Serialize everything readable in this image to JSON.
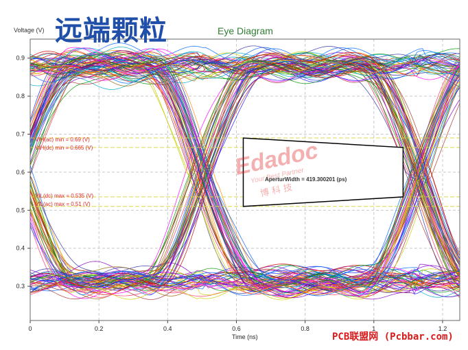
{
  "header": {
    "big_title": "远端颗粒",
    "chart_title": "Eye Diagram"
  },
  "footer": {
    "watermark": "PCB联盟网 (Pcbbar.com)"
  },
  "chart_data": {
    "type": "line",
    "title": "Eye Diagram",
    "ylabel": "Voltage (V)",
    "xlabel": "Time (ns)",
    "xlim": [
      0,
      1.25
    ],
    "ylim": [
      0.21,
      0.95
    ],
    "x_ticks": [
      "0",
      "0.2",
      "0.4",
      "0.6",
      "0.8",
      "1",
      "1.2"
    ],
    "x_tick_values": [
      0,
      0.2,
      0.4,
      0.6,
      0.8,
      1.0,
      1.2
    ],
    "y_ticks": [
      "0.3",
      "0.4",
      "0.5",
      "0.6",
      "0.7",
      "0.8",
      "0.9"
    ],
    "y_tick_values": [
      0.3,
      0.4,
      0.5,
      0.6,
      0.7,
      0.8,
      0.9
    ],
    "grid": true,
    "signal": {
      "high_level": 0.88,
      "low_level": 0.31,
      "high_spread": 0.035,
      "low_spread": 0.03,
      "crossings": [
        -0.02,
        0.5,
        1.13
      ],
      "crossing_level": 0.58,
      "trace_count": 150
    },
    "threshold_lines": [
      {
        "label": "VIH(ac) min = 0.69 (V)",
        "value": 0.69
      },
      {
        "label": "VIH(dc) min = 0.665 (V)",
        "value": 0.665
      },
      {
        "label": "VIL(dc) max = 0.535 (V)",
        "value": 0.535
      },
      {
        "label": "VIL(ac) max = 0.51 (V)",
        "value": 0.51
      }
    ],
    "eye_mask": {
      "points": [
        [
          0.62,
          0.69
        ],
        [
          1.085,
          0.665
        ],
        [
          1.085,
          0.535
        ],
        [
          0.62,
          0.51
        ]
      ],
      "label": "AperturWidth = 419.300201 (ps)"
    },
    "colors": [
      "#1a1aff",
      "#cc0000",
      "#009900",
      "#ff00ff",
      "#00aacc",
      "#ff8800",
      "#8800cc",
      "#996600",
      "#0066ff",
      "#cccc00",
      "#ff3366",
      "#006633",
      "#3333aa",
      "#aa3333"
    ]
  },
  "watermark": {
    "logo": "Edadoc",
    "tagline": "Your Best Partner",
    "cn": "博 科 技"
  }
}
